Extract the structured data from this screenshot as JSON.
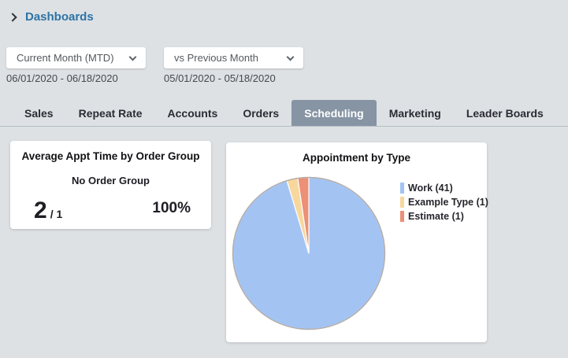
{
  "theme": {
    "background": "#dde1e4",
    "accent_blue": "#2e73a5",
    "active_tab_bg": "#8694a4",
    "card_bg": "#ffffff"
  },
  "breadcrumb": {
    "label": "Dashboards"
  },
  "filters": {
    "primary": {
      "value": "Current Month (MTD)",
      "date_range": "06/01/2020 - 06/18/2020"
    },
    "comparison": {
      "value": "vs Previous Month",
      "date_range": "05/01/2020 - 05/18/2020"
    }
  },
  "tabs": {
    "items": [
      {
        "label": "Sales"
      },
      {
        "label": "Repeat Rate"
      },
      {
        "label": "Accounts"
      },
      {
        "label": "Orders"
      },
      {
        "label": "Scheduling"
      },
      {
        "label": "Marketing"
      },
      {
        "label": "Leader Boards"
      }
    ],
    "active": "Scheduling"
  },
  "cards": {
    "avg_appt": {
      "title": "Average Appt Time by Order Group",
      "group_label": "No Order Group",
      "value": "2",
      "denominator": "/ 1",
      "percent": "100%"
    },
    "appt_by_type": {
      "title": "Appointment by Type"
    }
  },
  "chart_data": {
    "type": "pie",
    "title": "Appointment by Type",
    "labels": [
      "Work",
      "Example Type",
      "Estimate"
    ],
    "values": [
      41,
      1,
      1
    ],
    "legend_labels": [
      "Work (41)",
      "Example Type (1)",
      "Estimate (1)"
    ],
    "colors": [
      "#a3c4f3",
      "#f8d79e",
      "#ec9077"
    ],
    "legend_position": "right",
    "start_angle": 0,
    "direction": "clockwise",
    "outline_color": "#b5aca6",
    "slice_border_color": "#ffffff"
  }
}
